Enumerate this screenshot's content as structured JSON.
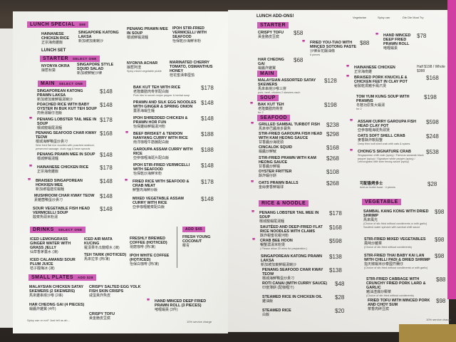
{
  "colors": {
    "accent": "#cf5fb6",
    "brand_strip": "#d13fa3"
  },
  "left_page": {
    "lunch_special": {
      "title": "Lunch Special",
      "price": "$98",
      "items": [
        {
          "name": "Hainanese Chicken Rice",
          "zh": "正宗海南雞飯"
        },
        {
          "name": "Singapore Katong Laksa",
          "zh": "新加坡加東喇沙"
        },
        {
          "name": "Penang Prawn Mee in Soup",
          "zh": "檳城鮮蝦湯麵"
        },
        {
          "name": "Ipoh Stir-fried Vermicelli with Seafood",
          "zh": "怡保乾炒海鮮米粉"
        }
      ]
    },
    "lunch_set": "Lunch Set",
    "starter": {
      "title": "Starter",
      "sub": "Select One",
      "items": [
        {
          "name": "Nyonya Okra",
          "zh": "娘惹秋葵"
        },
        {
          "name": "Singapore Style Squid Salad",
          "zh": "新加坡鮮魷沙律"
        },
        {
          "name": "Nyonya Achar",
          "zh": "娘惹阿渣",
          "note": "Spicy mixed vegetable pickle"
        },
        {
          "name": "Marinated Cherry Tomato, Osmanthus Honey",
          "zh": "桂花蜜漬車厘茄"
        }
      ]
    },
    "main": {
      "title": "Main",
      "sub": "Select One",
      "items": [
        {
          "name": "Singaporean Katong Prawn Laksa",
          "zh": "新加坡加東鮮蝦湯喇沙",
          "price": "$148"
        },
        {
          "name": "Poached Rice with Baby Oyster in Buk Kut Teh Soup",
          "zh": "肉骨湯蠔仔泡飯",
          "price": "$148"
        },
        {
          "name": "Penang Lobster Tail Mee in Soup",
          "zh": "檳城龍蝦尾湯麵",
          "price": "$178"
        },
        {
          "name": "Penang Seafood Char Kway Teow",
          "zh": "檳城海鮮鴨蛋炒貴刁",
          "note": "Wok fried flat rice noodles with poached seafood, preserved sausage, duck egg & bean sprouts",
          "price": "$168"
        },
        {
          "name": "Penang Prawn Mee in Soup",
          "zh": "檳城鮮蝦湯麵",
          "price": "$148"
        },
        {
          "name": "Hainanese Chicken Rice",
          "zh": "正宗海南雞飯",
          "price": "$178"
        },
        {
          "name": "Braised Singaporean Hokkien Mee",
          "zh": "新加坡福建炆蝦麵",
          "price": "$148"
        },
        {
          "name": "Mushroom Char Kway Teow",
          "zh": "素雜菌鴨蛋炒貴刁",
          "price": "$148"
        },
        {
          "name": "Sour Vegetable Fish Head Vermicelli Soup",
          "zh": "酸菜魚頭米粉湯",
          "price": "$148"
        },
        {
          "name": "Bak Kut Teh with Rice",
          "zh": "老隆藥膳肉骨茶配白飯",
          "note": "Pork ribs in secret recipe pepper & herbal soup",
          "price": "$178"
        },
        {
          "name": "Prawn and Silk Egg Noodles with Ginger & Spring Onion",
          "zh": "薑蔥海蝦生麵",
          "price": "$148"
        },
        {
          "name": "Ipoh Shredded Chicken & Prawn Hor Fun",
          "zh": "怡保雞絲鮮蝦湯河粉",
          "price": "$148"
        },
        {
          "name": "Beef Brisket & Tendon Nanyang Curry with Rice",
          "zh": "南洋咖喱牛筋腩配白飯",
          "price": "$188"
        },
        {
          "name": "Garoupa Assam Curry with Rice",
          "zh": "亞參咖喱海斑片配白飯",
          "price": "$188"
        },
        {
          "name": "Ipoh Stir-fried Vermicelli with Seafood",
          "zh": "怡保乾炒海鮮米粉",
          "price": "$148"
        },
        {
          "name": "Fried Rice with Seafood & Crab Meat",
          "zh": "鮮蟹肉海鮮炒飯",
          "price": "$178"
        },
        {
          "name": "Mixed Vegetable Assam Curry with Rice",
          "zh": "亞參咖喱雜菜配白飯",
          "price": "$148"
        }
      ]
    },
    "drinks": {
      "title": "Drinks",
      "sub": "Select One",
      "items": [
        {
          "name": "Iced Lemongrass Ginger Water with Grass Jelly",
          "zh": "仙草香茅薑水 (凍)"
        },
        {
          "name": "Iced Calamansi Sour Plum Juice",
          "zh": "桔子酸梅冰 (凍)"
        },
        {
          "name": "Iced Air Mata Kucing",
          "zh": "羅漢果冬瓜龍眼水 (凍)"
        },
        {
          "name": "Teh Tarik (Hot/Iced)",
          "zh": "馬來拉茶 (熱/凍)"
        },
        {
          "name": "Freshly Brewed Coffee (Hot/Iced)",
          "zh": "現磨咖啡 (熱/凍)"
        },
        {
          "name": "Ipoh White Coffee (Hot/Iced)",
          "zh": "怡保白咖啡 (熱/凍)"
        }
      ],
      "addon": {
        "label": "Add $45",
        "name": "Fresh Young Coconut",
        "zh": "椰青"
      }
    },
    "small_plates": {
      "title": "Small Plates",
      "sub": "Add $28",
      "items": [
        {
          "name": "Malaysian Chicken Satay Skewers (2 skewers)",
          "zh": "馬來雞串燒沙嗲 (2串)"
        },
        {
          "name": "Har Cheong Gai (4 pieces)",
          "zh": "蝦醬炸雞翼 (4件)"
        },
        {
          "name": "Crispy Salted Egg Yolk Fish Skin Crisps",
          "zh": "咸蛋黃炸魚皮"
        },
        {
          "name": "Crispy Tofu",
          "zh": "黃金脆皮豆腐"
        },
        {
          "name": "Hand Minced Deep Fried Prawn Roll (3 pieces)",
          "zh": "啫喱蝦棗 (3件)"
        }
      ]
    },
    "footer_left": "Spicy can or not? Just tell us ah...",
    "footer_right": "10% service charge"
  },
  "right_page": {
    "title": "Lunch Add-Ons!",
    "legend": [
      "Vegetarian",
      "Spicy can",
      "Die Die Must Try"
    ],
    "starter": {
      "title": "Starter",
      "items": [
        {
          "name": "Crispy Tofu",
          "zh": "黃金脆皮豆腐",
          "price": "$58"
        },
        {
          "name": "Har Cheong Gai",
          "zh": "蝦醬炸雞翼",
          "price": "$68"
        },
        {
          "name": "Fried You-Tiao with Minced Sotong Paste",
          "zh": "沙律百花釀油條",
          "price": "$88",
          "note": "6 pieces"
        },
        {
          "name": "Hand Minced Deep Fried Prawn Roll",
          "zh": "啫喱蝦棗",
          "price": "$78"
        }
      ]
    },
    "main": {
      "title": "Main",
      "items": [
        {
          "name": "Malaysian Assorted Satay Skewers",
          "zh": "馬來串燒沙嗲三拼",
          "note": "pork, beef, chicken 2 skewers each",
          "price": "$128"
        },
        {
          "name": "Hainanese Chicken",
          "zh": "正宗海南雞",
          "price": "Half $198 / Whole $388"
        },
        {
          "name": "Braised Pork Knuckle & Chicken Feet in Clay Pot",
          "zh": "秘製乾焗豬手鳳爪煲",
          "price": "$168"
        }
      ]
    },
    "soup": {
      "title": "Soup",
      "items": [
        {
          "name": "Bak Kut Teh",
          "zh": "老隆藥膳肉骨茶",
          "note": "for 2",
          "price": "$198"
        },
        {
          "name": "Tom Yum Kung Soup with Prawns",
          "zh": "冬蔭功原隻大蝦湯",
          "note": "for 2",
          "price": "$198"
        }
      ]
    },
    "seafood": {
      "title": "Seafood",
      "items": [
        {
          "name": "Grilled Sambal Turbot Fish",
          "zh": "馬來參巴醬燒多寶魚",
          "price": "$238"
        },
        {
          "name": "Stir-fried Garoupa Fish Head with Kam Heong Sauce",
          "zh": "甘香醬炒海斑頭",
          "price": "$298"
        },
        {
          "name": "Cincalok Squid",
          "zh": "蝦醬炒鮮魷",
          "price": "$168"
        },
        {
          "name": "Stir-fried Prawn with Kam Heong Sauce",
          "zh": "甘香醬炒鮮蝦",
          "price": "$268"
        },
        {
          "name": "Oyster Fritter",
          "zh": "酥炸蠔仔餅",
          "price": "$108"
        },
        {
          "name": "Oats Prawn Balls",
          "zh": "金絲麥香鮮蝦球",
          "price": "$268"
        },
        {
          "name": "Assam Curry Garoupa Fish Head Clay Pot",
          "zh": "亞參咖喱海斑魚頭煲",
          "price": "$598"
        },
        {
          "name": "Oats Soft Shell Crab",
          "zh": "麥香酥炸軟殼蟹",
          "note": "Deep fried soft shell crab with oats & spices",
          "price": "$248"
        },
        {
          "name": "Chong's Signature Crab",
          "zh": "",
          "note": "Singaporean chilli crab (spicy) / Famous sarawak black pepper (spicy) / Signature white pepper (spicy) / Lemongrass with kam heong sauce (spicy)",
          "price": "$538"
        },
        {
          "name": "可配香烤多士",
          "zh": "",
          "note": "Add-on butter toast · 4 pieces",
          "price": "$28"
        }
      ]
    },
    "rice_noodle": {
      "title": "Rice & Noodle",
      "items": [
        {
          "name": "Penang Lobster Tail Mee in Soup",
          "zh": "檳城龍蝦尾湯麵",
          "price": "$178"
        },
        {
          "name": "Sautéed and Deep-fried Flat Rice Noodles with Clams",
          "zh": "酥炸蜆蜜花蜆河粉",
          "price": "$168"
        },
        {
          "name": "Crab Bee Hoon",
          "zh": "暢蟹濃湯米粉煲",
          "note": "( Please allow 20 mins for preparation )",
          "price": "$598"
        },
        {
          "name": "Singaporean Katong Prawn Laksa",
          "zh": "新加坡加東鮮蝦湯喇沙",
          "price": "$138"
        },
        {
          "name": "Penang Seafood Char Kway Teow",
          "zh": "檳城海鮮鴨蛋炒貴刁",
          "price": "$138"
        },
        {
          "name": "Roti Canai (with curry sauce)",
          "zh": "印度薄餅 (配咖喱汁)",
          "price": "$48"
        },
        {
          "name": "Steamed Rice in Chicken Oil",
          "zh": "雞油飯",
          "price": "$28"
        },
        {
          "name": "Steamed Rice",
          "zh": "白飯",
          "price": "$20"
        }
      ]
    },
    "vegetable": {
      "title": "Vegetable",
      "items": [
        {
          "name": "Sambal Kang Kong with Dried Shrimp",
          "zh": "馬來風光",
          "note": "(Choice of stir-fried without condiments or with garlic) Sautéed water spinach with sambal chilli sauce",
          "price": "$98"
        },
        {
          "name": "Stir-fried Mixed Vegetables",
          "zh": "風味炒雜菜",
          "note": "(Choice of stir-fried without condiments)",
          "price": "$98"
        },
        {
          "name": "Stir-fried Thai Baby Kai Lan with Chilli Padi & Dried Shrimp",
          "zh": "指天椒蝦米炒泰國芥蘭仔",
          "note": "(Choice of stir-fried without condiments or with garlic)",
          "price": "$98"
        },
        {
          "name": "Stir-fried Cabbage with Crunchy Fried Pork Lard & Garlic",
          "zh": "豬油渣爆炒椰菜",
          "note": "(Choice of stir-fried without condiments)",
          "price": "$88"
        },
        {
          "name": "Fried Tofu with Minced Pork and Choy Sum",
          "zh": "菜香肉碎豆腐",
          "price": "$98"
        }
      ]
    },
    "footer": "10% service charge"
  }
}
